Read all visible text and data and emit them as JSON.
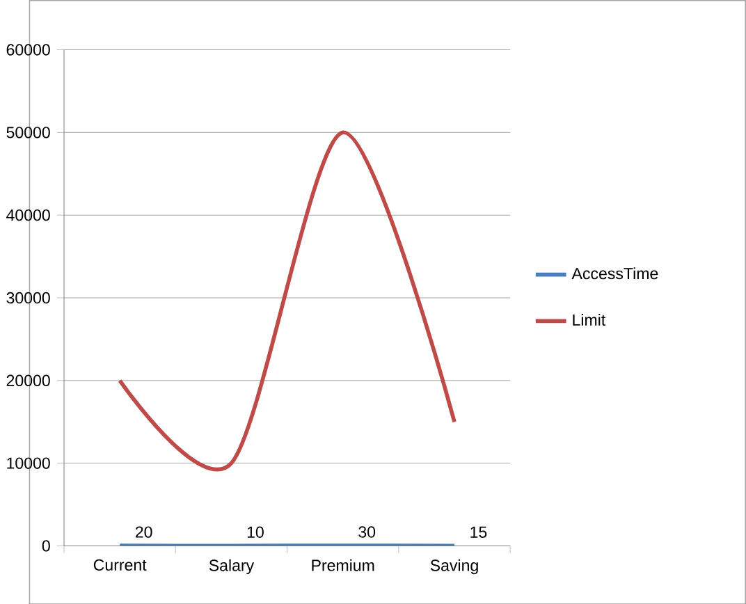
{
  "chart_data": {
    "type": "line",
    "categories": [
      "Current",
      "Salary",
      "Premium",
      "Saving"
    ],
    "series": [
      {
        "name": "AccessTime",
        "color": "#4a7ebb",
        "values": [
          20,
          10,
          30,
          15
        ],
        "value_labels": [
          "20",
          "10",
          "30",
          "15"
        ]
      },
      {
        "name": "Limit",
        "color": "#be4b48",
        "values": [
          20000,
          10000,
          50000,
          15000
        ]
      }
    ],
    "ylim": [
      0,
      60000
    ],
    "yticks": [
      0,
      10000,
      20000,
      30000,
      40000,
      50000,
      60000
    ],
    "grid": "y",
    "legend": "right",
    "marker": "none",
    "line_style": "solid"
  }
}
